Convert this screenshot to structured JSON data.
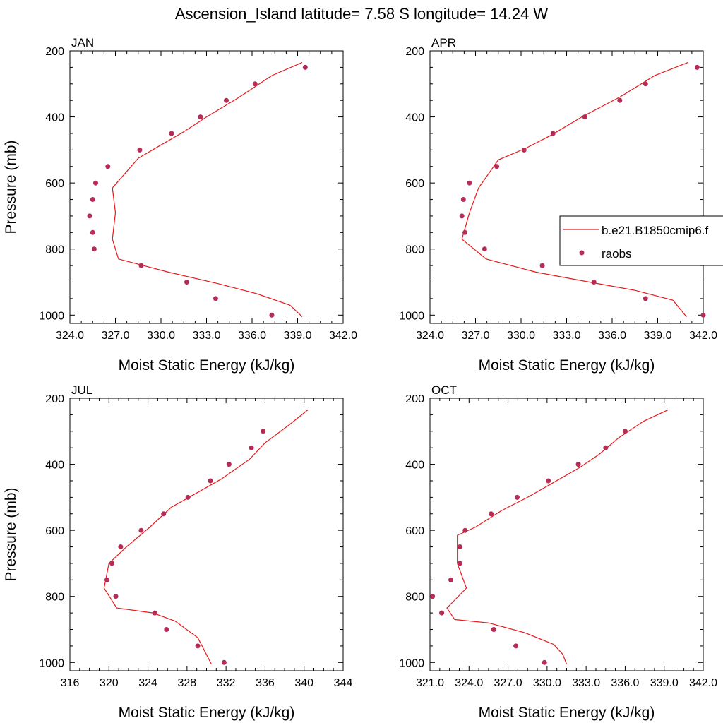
{
  "figure": {
    "title": "Ascension_Island  latitude= 7.58 S longitude= 14.24 W"
  },
  "legend": {
    "items": [
      {
        "label": "b.e21.B1850cmip6.f",
        "kind": "line",
        "color": "#e8191b"
      },
      {
        "label": "raobs",
        "kind": "marker",
        "color": "#b52c57"
      }
    ]
  },
  "chart_data": [
    {
      "type": "line",
      "title": "JAN",
      "xlabel": "Moist Static Energy (kJ/kg)",
      "ylabel": "Pressure (mb)",
      "xlim": [
        324,
        342
      ],
      "ylim": [
        200,
        1025
      ],
      "y_inverted": true,
      "xticks": [
        "324.0",
        "327.0",
        "330.0",
        "333.0",
        "336.0",
        "339.0",
        "342.0"
      ],
      "xtick_values": [
        324,
        327,
        330,
        333,
        336,
        339,
        342
      ],
      "yticks": [
        "200",
        "400",
        "600",
        "800",
        "1000"
      ],
      "ytick_values": [
        200,
        400,
        600,
        800,
        1000
      ],
      "series": [
        {
          "name": "b.e21.B1850cmip6.f",
          "kind": "line",
          "color": "#e8191b",
          "points": [
            [
              339.3,
              235
            ],
            [
              337.3,
              275
            ],
            [
              335.0,
              345
            ],
            [
              333.0,
              400
            ],
            [
              331.5,
              445
            ],
            [
              330.0,
              485
            ],
            [
              328.5,
              525
            ],
            [
              326.8,
              615
            ],
            [
              327.0,
              690
            ],
            [
              326.8,
              770
            ],
            [
              327.2,
              830
            ],
            [
              330.5,
              870
            ],
            [
              333.8,
              905
            ],
            [
              336.3,
              935
            ],
            [
              338.5,
              970
            ],
            [
              339.3,
              1005
            ]
          ]
        },
        {
          "name": "raobs",
          "kind": "marker",
          "color": "#b52c57",
          "points": [
            [
              339.5,
              250
            ],
            [
              336.2,
              300
            ],
            [
              334.3,
              350
            ],
            [
              332.6,
              400
            ],
            [
              330.7,
              450
            ],
            [
              328.6,
              500
            ],
            [
              326.5,
              550
            ],
            [
              325.7,
              600
            ],
            [
              325.5,
              650
            ],
            [
              325.3,
              700
            ],
            [
              325.5,
              750
            ],
            [
              325.6,
              800
            ],
            [
              328.7,
              850
            ],
            [
              331.7,
              900
            ],
            [
              333.6,
              950
            ],
            [
              337.3,
              1000
            ]
          ]
        }
      ]
    },
    {
      "type": "line",
      "title": "APR",
      "xlabel": "Moist Static Energy (kJ/kg)",
      "ylabel": "",
      "xlim": [
        324,
        342
      ],
      "ylim": [
        200,
        1025
      ],
      "y_inverted": true,
      "xticks": [
        "324.0",
        "327.0",
        "330.0",
        "333.0",
        "336.0",
        "339.0",
        "342.0"
      ],
      "xtick_values": [
        324,
        327,
        330,
        333,
        336,
        339,
        342
      ],
      "yticks": [
        "200",
        "400",
        "600",
        "800",
        "1000"
      ],
      "ytick_values": [
        200,
        400,
        600,
        800,
        1000
      ],
      "series": [
        {
          "name": "b.e21.B1850cmip6.f",
          "kind": "line",
          "color": "#e8191b",
          "points": [
            [
              341.0,
              235
            ],
            [
              338.8,
              275
            ],
            [
              336.5,
              340
            ],
            [
              334.0,
              400
            ],
            [
              332.0,
              455
            ],
            [
              330.3,
              495
            ],
            [
              328.5,
              530
            ],
            [
              327.2,
              615
            ],
            [
              326.6,
              690
            ],
            [
              326.1,
              770
            ],
            [
              327.7,
              830
            ],
            [
              331.0,
              870
            ],
            [
              334.5,
              900
            ],
            [
              337.5,
              925
            ],
            [
              340.0,
              955
            ],
            [
              340.9,
              1005
            ]
          ]
        },
        {
          "name": "raobs",
          "kind": "marker",
          "color": "#b52c57",
          "points": [
            [
              341.6,
              250
            ],
            [
              338.2,
              300
            ],
            [
              336.5,
              350
            ],
            [
              334.2,
              400
            ],
            [
              332.1,
              450
            ],
            [
              330.2,
              500
            ],
            [
              328.4,
              550
            ],
            [
              326.6,
              600
            ],
            [
              326.2,
              650
            ],
            [
              326.1,
              700
            ],
            [
              326.3,
              750
            ],
            [
              327.6,
              800
            ],
            [
              331.4,
              850
            ],
            [
              334.8,
              900
            ],
            [
              338.2,
              950
            ],
            [
              342.0,
              1000
            ]
          ]
        }
      ]
    },
    {
      "type": "line",
      "title": "JUL",
      "xlabel": "Moist Static Energy (kJ/kg)",
      "ylabel": "Pressure (mb)",
      "xlim": [
        316,
        344
      ],
      "ylim": [
        200,
        1025
      ],
      "y_inverted": true,
      "xticks": [
        "316",
        "320",
        "324",
        "328",
        "332",
        "336",
        "340",
        "344"
      ],
      "xtick_values": [
        316,
        320,
        324,
        328,
        332,
        336,
        340,
        344
      ],
      "yticks": [
        "200",
        "400",
        "600",
        "800",
        "1000"
      ],
      "ytick_values": [
        200,
        400,
        600,
        800,
        1000
      ],
      "series": [
        {
          "name": "b.e21.B1850cmip6.f",
          "kind": "line",
          "color": "#e8191b",
          "points": [
            [
              340.4,
              235
            ],
            [
              338.5,
              280
            ],
            [
              336.0,
              335
            ],
            [
              334.4,
              385
            ],
            [
              331.5,
              445
            ],
            [
              328.8,
              490
            ],
            [
              326.4,
              530
            ],
            [
              324.2,
              590
            ],
            [
              321.8,
              650
            ],
            [
              320.0,
              700
            ],
            [
              319.5,
              775
            ],
            [
              320.8,
              835
            ],
            [
              324.5,
              850
            ],
            [
              326.8,
              875
            ],
            [
              329.1,
              925
            ],
            [
              330.5,
              1005
            ]
          ]
        },
        {
          "name": "raobs",
          "kind": "marker",
          "color": "#b52c57",
          "points": [
            [
              335.8,
              300
            ],
            [
              334.6,
              350
            ],
            [
              332.3,
              400
            ],
            [
              330.4,
              450
            ],
            [
              328.1,
              500
            ],
            [
              325.6,
              550
            ],
            [
              323.3,
              600
            ],
            [
              321.2,
              650
            ],
            [
              320.3,
              700
            ],
            [
              319.8,
              750
            ],
            [
              320.7,
              800
            ],
            [
              324.7,
              850
            ],
            [
              325.9,
              900
            ],
            [
              329.1,
              950
            ],
            [
              331.8,
              1000
            ]
          ]
        }
      ]
    },
    {
      "type": "line",
      "title": "OCT",
      "xlabel": "Moist Static Energy (kJ/kg)",
      "ylabel": "",
      "xlim": [
        321,
        342
      ],
      "ylim": [
        200,
        1025
      ],
      "y_inverted": true,
      "xticks": [
        "321.0",
        "324.0",
        "327.0",
        "330.0",
        "333.0",
        "336.0",
        "339.0",
        "342.0"
      ],
      "xtick_values": [
        321,
        324,
        327,
        330,
        333,
        336,
        339,
        342
      ],
      "yticks": [
        "200",
        "400",
        "600",
        "800",
        "1000"
      ],
      "ytick_values": [
        200,
        400,
        600,
        800,
        1000
      ],
      "series": [
        {
          "name": "b.e21.B1850cmip6.f",
          "kind": "line",
          "color": "#e8191b",
          "points": [
            [
              339.3,
              235
            ],
            [
              337.4,
              270
            ],
            [
              335.5,
              320
            ],
            [
              334.0,
              370
            ],
            [
              332.5,
              410
            ],
            [
              330.5,
              455
            ],
            [
              328.5,
              500
            ],
            [
              326.5,
              540
            ],
            [
              324.5,
              590
            ],
            [
              323.1,
              615
            ],
            [
              323.1,
              700
            ],
            [
              323.8,
              775
            ],
            [
              322.3,
              835
            ],
            [
              322.9,
              870
            ],
            [
              325.5,
              880
            ],
            [
              328.3,
              910
            ],
            [
              330.5,
              945
            ],
            [
              331.2,
              975
            ],
            [
              331.5,
              1005
            ]
          ]
        },
        {
          "name": "raobs",
          "kind": "marker",
          "color": "#b52c57",
          "points": [
            [
              336.0,
              300
            ],
            [
              334.5,
              350
            ],
            [
              332.4,
              400
            ],
            [
              330.1,
              450
            ],
            [
              327.7,
              500
            ],
            [
              325.7,
              550
            ],
            [
              323.7,
              600
            ],
            [
              323.3,
              650
            ],
            [
              323.3,
              700
            ],
            [
              322.6,
              750
            ],
            [
              321.2,
              800
            ],
            [
              321.9,
              850
            ],
            [
              325.9,
              900
            ],
            [
              327.6,
              950
            ],
            [
              329.8,
              1000
            ]
          ]
        }
      ]
    }
  ]
}
